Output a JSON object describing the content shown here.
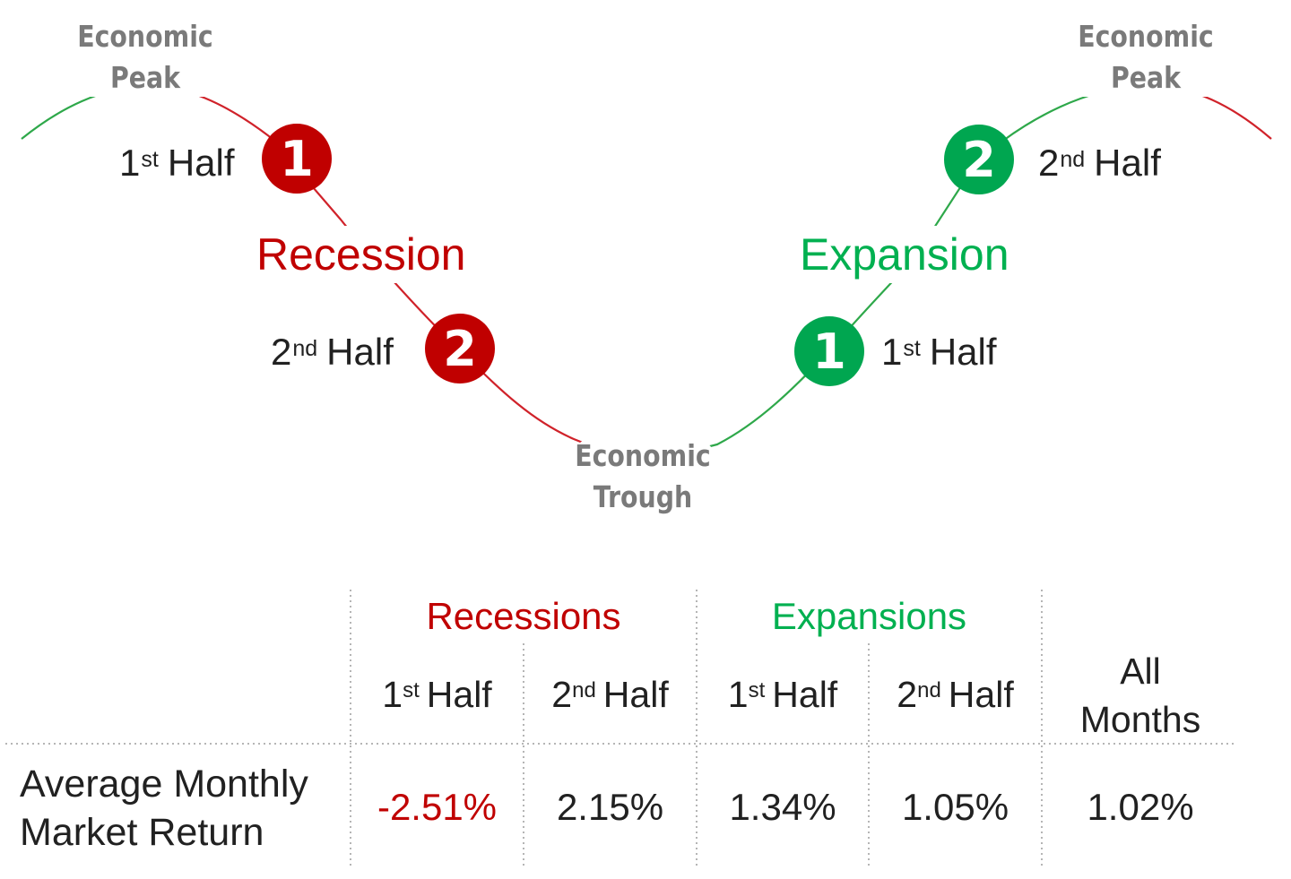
{
  "diagram": {
    "peak_left": {
      "line1": "Economic",
      "line2": "Peak"
    },
    "peak_right": {
      "line1": "Economic",
      "line2": "Peak"
    },
    "trough": {
      "line1": "Economic",
      "line2": "Trough"
    },
    "recession": {
      "label": "Recession",
      "color": "#c00000",
      "first_half": {
        "number": "1",
        "ordinal": "1",
        "suffix": "st",
        "word": "Half"
      },
      "second_half": {
        "number": "2",
        "ordinal": "2",
        "suffix": "nd",
        "word": "Half"
      }
    },
    "expansion": {
      "label": "Expansion",
      "color": "#00b050",
      "first_half": {
        "number": "1",
        "ordinal": "1",
        "suffix": "st",
        "word": "Half"
      },
      "second_half": {
        "number": "2",
        "ordinal": "2",
        "suffix": "nd",
        "word": "Half"
      }
    }
  },
  "table": {
    "groups": {
      "recessions": "Recessions",
      "expansions": "Expansions"
    },
    "columns": [
      {
        "ordinal": "1",
        "suffix": "st",
        "word": "Half"
      },
      {
        "ordinal": "2",
        "suffix": "nd",
        "word": "Half"
      },
      {
        "ordinal": "1",
        "suffix": "st",
        "word": "Half"
      },
      {
        "ordinal": "2",
        "suffix": "nd",
        "word": "Half"
      }
    ],
    "all_months": {
      "line1": "All",
      "line2": "Months"
    },
    "row": {
      "label_line1": "Average Monthly",
      "label_line2": "Market Return",
      "values": [
        "-2.51%",
        "2.15%",
        "1.34%",
        "1.05%",
        "1.02%"
      ]
    }
  }
}
